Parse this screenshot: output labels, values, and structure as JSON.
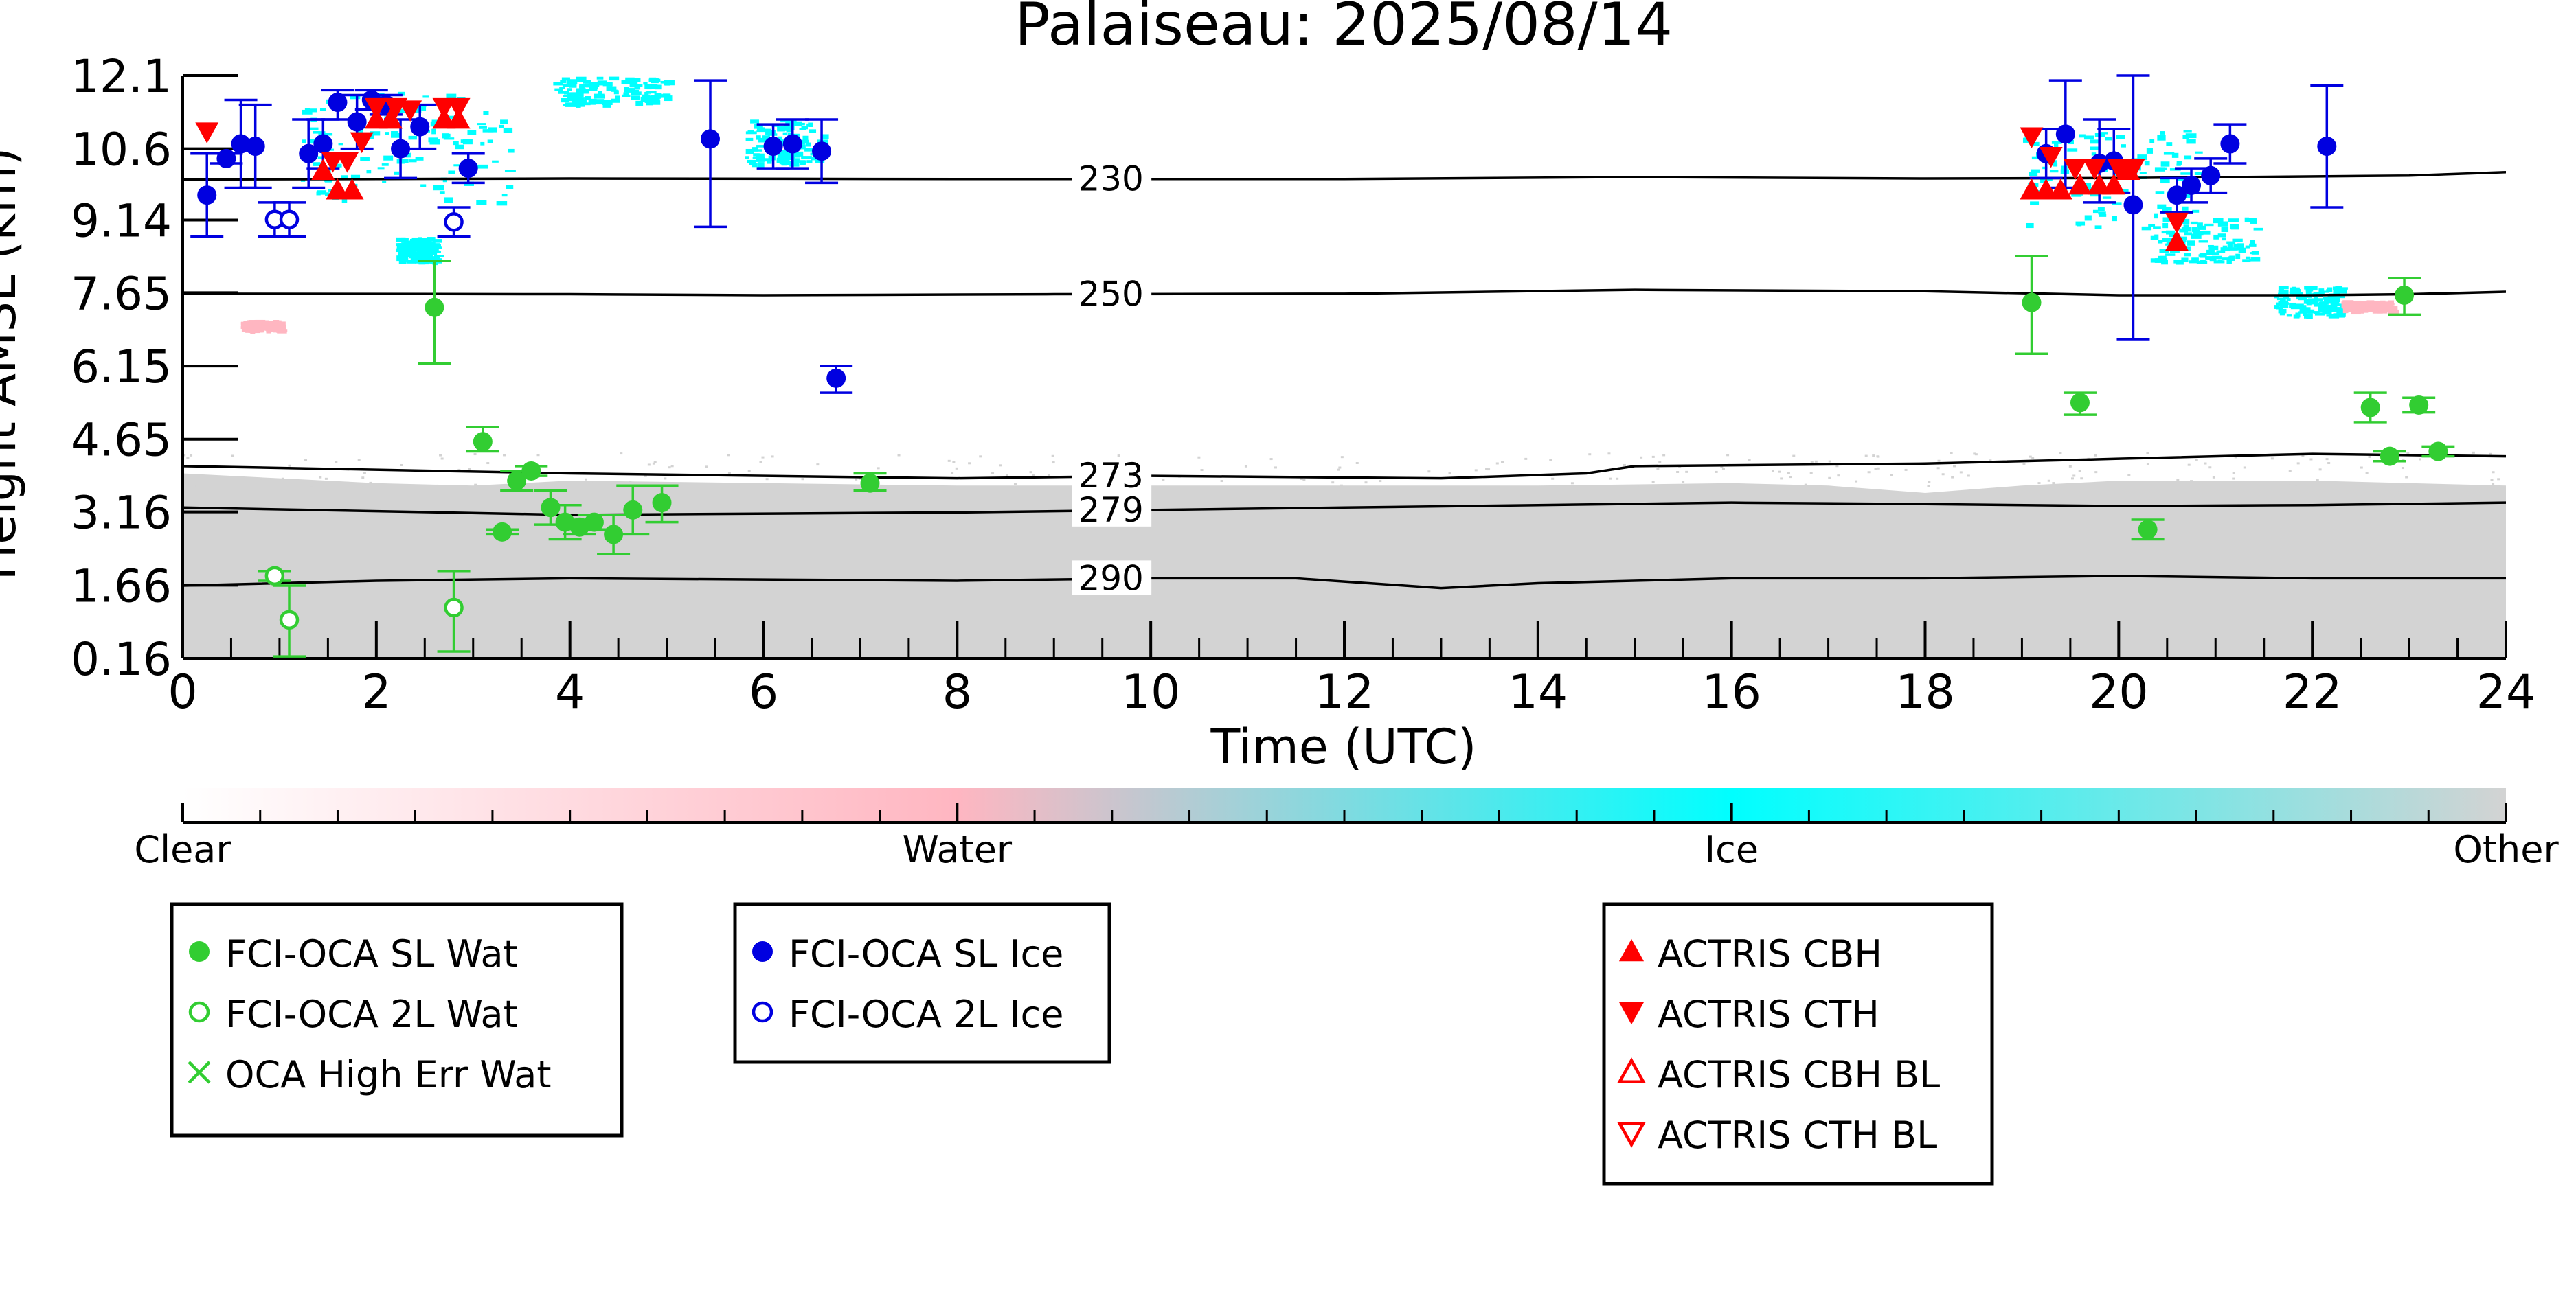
{
  "chart_data": {
    "type": "scatter",
    "title": "Palaiseau: 2025/08/14",
    "xlabel": "Time (UTC)",
    "ylabel": "Height AMSL (km)",
    "xlim": [
      0,
      24
    ],
    "ylim": [
      0.16,
      12.1
    ],
    "x_ticks": [
      0,
      2,
      4,
      6,
      8,
      10,
      12,
      14,
      16,
      18,
      20,
      22,
      24
    ],
    "y_ticks": [
      0.16,
      1.66,
      3.16,
      4.65,
      6.15,
      7.65,
      9.14,
      10.6,
      12.1
    ],
    "y_tick_labels": [
      "0.16",
      "1.66",
      "3.16",
      "4.65",
      "6.15",
      "7.65",
      "9.14",
      "10.6",
      "12.1"
    ],
    "grid": false,
    "background_classification": {
      "colorbar_labels": [
        "Clear",
        "Water",
        "Ice",
        "Other"
      ],
      "colors": {
        "clear": "#ffffff",
        "water": "#ffb6c1",
        "ice": "#00ffff",
        "other": "#d3d3d3"
      },
      "other_layer_top_km": [
        [
          0,
          3.95
        ],
        [
          1,
          3.85
        ],
        [
          2,
          3.75
        ],
        [
          3,
          3.7
        ],
        [
          4,
          3.8
        ],
        [
          6,
          3.75
        ],
        [
          8,
          3.7
        ],
        [
          10,
          3.7
        ],
        [
          12,
          3.7
        ],
        [
          14,
          3.7
        ],
        [
          16,
          3.75
        ],
        [
          17,
          3.7
        ],
        [
          18,
          3.55
        ],
        [
          19,
          3.7
        ],
        [
          20,
          3.8
        ],
        [
          22,
          3.8
        ],
        [
          24,
          3.7
        ]
      ],
      "ice_patches": [
        {
          "x": [
            1.2,
            3.4
          ],
          "y": [
            9.5,
            11.8
          ]
        },
        {
          "x": [
            2.2,
            2.6
          ],
          "y": [
            8.3,
            8.8
          ]
        },
        {
          "x": [
            3.8,
            5.0
          ],
          "y": [
            11.5,
            12.1
          ]
        },
        {
          "x": [
            5.8,
            6.6
          ],
          "y": [
            10.3,
            11.2
          ]
        },
        {
          "x": [
            19.0,
            20.8
          ],
          "y": [
            9.0,
            11.0
          ]
        },
        {
          "x": [
            20.3,
            21.4
          ],
          "y": [
            8.3,
            9.2
          ]
        },
        {
          "x": [
            21.6,
            22.3
          ],
          "y": [
            7.2,
            7.8
          ]
        }
      ],
      "water_patches": [
        {
          "x": [
            0.6,
            1.0
          ],
          "y": [
            6.9,
            7.1
          ]
        },
        {
          "x": [
            22.3,
            22.8
          ],
          "y": [
            7.3,
            7.5
          ]
        }
      ]
    },
    "isotherms": [
      {
        "label": "230",
        "points": [
          [
            0,
            9.97
          ],
          [
            4,
            9.99
          ],
          [
            8,
            9.98
          ],
          [
            12,
            9.98
          ],
          [
            15,
            10.02
          ],
          [
            18,
            9.99
          ],
          [
            20,
            10.0
          ],
          [
            23,
            10.05
          ],
          [
            24,
            10.12
          ]
        ]
      },
      {
        "label": "250",
        "points": [
          [
            0,
            7.63
          ],
          [
            4,
            7.62
          ],
          [
            6,
            7.6
          ],
          [
            9,
            7.62
          ],
          [
            12,
            7.63
          ],
          [
            15,
            7.71
          ],
          [
            18,
            7.68
          ],
          [
            20,
            7.6
          ],
          [
            22,
            7.6
          ],
          [
            23,
            7.62
          ],
          [
            24,
            7.67
          ]
        ]
      },
      {
        "label": "273",
        "points": [
          [
            0,
            4.1
          ],
          [
            4,
            3.95
          ],
          [
            8,
            3.85
          ],
          [
            10,
            3.9
          ],
          [
            13,
            3.85
          ],
          [
            14.5,
            3.95
          ],
          [
            15,
            4.1
          ],
          [
            18,
            4.15
          ],
          [
            20,
            4.25
          ],
          [
            22,
            4.35
          ],
          [
            24,
            4.3
          ]
        ]
      },
      {
        "label": "279",
        "points": [
          [
            0,
            3.25
          ],
          [
            4,
            3.1
          ],
          [
            8,
            3.15
          ],
          [
            10,
            3.2
          ],
          [
            12,
            3.25
          ],
          [
            14,
            3.3
          ],
          [
            16,
            3.35
          ],
          [
            18,
            3.32
          ],
          [
            20,
            3.28
          ],
          [
            22,
            3.3
          ],
          [
            24,
            3.35
          ]
        ]
      },
      {
        "label": "290",
        "points": [
          [
            0,
            1.65
          ],
          [
            2,
            1.75
          ],
          [
            4,
            1.8
          ],
          [
            8,
            1.75
          ],
          [
            10,
            1.8
          ],
          [
            11.5,
            1.8
          ],
          [
            13,
            1.6
          ],
          [
            14,
            1.7
          ],
          [
            16,
            1.8
          ],
          [
            18,
            1.8
          ],
          [
            20,
            1.85
          ],
          [
            22,
            1.8
          ],
          [
            24,
            1.8
          ]
        ]
      }
    ],
    "series": [
      {
        "name": "FCI-OCA SL Wat",
        "color": "#32cd32",
        "marker": "circle-filled",
        "points": [
          {
            "x": 2.6,
            "y": 7.35,
            "err": [
              6.2,
              8.3
            ]
          },
          {
            "x": 3.1,
            "y": 4.6,
            "err": [
              4.4,
              4.9
            ]
          },
          {
            "x": 3.3,
            "y": 2.75,
            "err": [
              2.7,
              2.8
            ]
          },
          {
            "x": 3.45,
            "y": 3.8,
            "err": [
              3.6,
              4.0
            ]
          },
          {
            "x": 3.6,
            "y": 4.0,
            "err": [
              3.9,
              4.1
            ]
          },
          {
            "x": 3.8,
            "y": 3.25,
            "err": [
              2.9,
              3.6
            ]
          },
          {
            "x": 3.95,
            "y": 2.95,
            "err": [
              2.6,
              3.3
            ]
          },
          {
            "x": 4.1,
            "y": 2.85,
            "err": [
              2.7,
              3.0
            ]
          },
          {
            "x": 4.25,
            "y": 2.95,
            "err": [
              2.8,
              3.1
            ]
          },
          {
            "x": 4.45,
            "y": 2.7,
            "err": [
              2.3,
              3.1
            ]
          },
          {
            "x": 4.65,
            "y": 3.2,
            "err": [
              2.7,
              3.7
            ]
          },
          {
            "x": 4.95,
            "y": 3.35,
            "err": [
              2.95,
              3.7
            ]
          },
          {
            "x": 7.1,
            "y": 3.75,
            "err": [
              3.6,
              3.95
            ]
          },
          {
            "x": 19.1,
            "y": 7.45,
            "err": [
              6.4,
              8.4
            ]
          },
          {
            "x": 19.6,
            "y": 5.4,
            "err": [
              5.15,
              5.6
            ]
          },
          {
            "x": 20.3,
            "y": 2.8,
            "err": [
              2.6,
              3.0
            ]
          },
          {
            "x": 22.6,
            "y": 5.3,
            "err": [
              5.0,
              5.6
            ]
          },
          {
            "x": 22.8,
            "y": 4.3,
            "err": [
              4.2,
              4.4
            ]
          },
          {
            "x": 22.95,
            "y": 7.6,
            "err": [
              7.2,
              7.95
            ]
          },
          {
            "x": 23.1,
            "y": 5.35,
            "err": [
              5.2,
              5.5
            ]
          },
          {
            "x": 23.3,
            "y": 4.4,
            "err": [
              4.3,
              4.5
            ]
          }
        ]
      },
      {
        "name": "FCI-OCA 2L Wat",
        "color": "#32cd32",
        "marker": "circle-open",
        "points": [
          {
            "x": 0.95,
            "y": 1.85,
            "err": [
              1.75,
              1.95
            ]
          },
          {
            "x": 1.1,
            "y": 0.95,
            "err": [
              0.2,
              1.65
            ]
          },
          {
            "x": 2.8,
            "y": 1.2,
            "err": [
              0.3,
              1.95
            ]
          }
        ]
      },
      {
        "name": "OCA High Err Wat",
        "color": "#32cd32",
        "marker": "x",
        "points": []
      },
      {
        "name": "FCI-OCA SL Ice",
        "color": "#0000e0",
        "marker": "circle-filled",
        "points": [
          {
            "x": 0.25,
            "y": 9.65,
            "err": [
              8.8,
              10.5
            ]
          },
          {
            "x": 0.45,
            "y": 10.4,
            "err": [
              10.3,
              10.5
            ]
          },
          {
            "x": 0.6,
            "y": 10.7,
            "err": [
              9.8,
              11.6
            ]
          },
          {
            "x": 0.75,
            "y": 10.65,
            "err": [
              9.8,
              11.5
            ]
          },
          {
            "x": 1.3,
            "y": 10.5,
            "err": [
              9.8,
              11.2
            ]
          },
          {
            "x": 1.45,
            "y": 10.7,
            "err": [
              10.2,
              11.2
            ]
          },
          {
            "x": 1.6,
            "y": 11.55,
            "err": [
              11.2,
              11.8
            ]
          },
          {
            "x": 1.8,
            "y": 11.15,
            "err": [
              10.6,
              11.7
            ]
          },
          {
            "x": 1.95,
            "y": 11.6,
            "err": [
              11.4,
              11.8
            ]
          },
          {
            "x": 2.1,
            "y": 11.5,
            "err": [
              11.3,
              11.7
            ]
          },
          {
            "x": 2.25,
            "y": 10.6,
            "err": [
              10.0,
              11.2
            ]
          },
          {
            "x": 2.45,
            "y": 11.05,
            "err": [
              10.6,
              11.5
            ]
          },
          {
            "x": 2.95,
            "y": 10.2,
            "err": [
              9.9,
              10.5
            ]
          },
          {
            "x": 5.45,
            "y": 10.8,
            "err": [
              9.0,
              12.0
            ]
          },
          {
            "x": 6.1,
            "y": 10.65,
            "err": [
              10.2,
              11.1
            ]
          },
          {
            "x": 6.3,
            "y": 10.7,
            "err": [
              10.2,
              11.2
            ]
          },
          {
            "x": 6.6,
            "y": 10.55,
            "err": [
              9.9,
              11.2
            ]
          },
          {
            "x": 6.75,
            "y": 5.9,
            "err": [
              5.6,
              6.15
            ]
          },
          {
            "x": 19.25,
            "y": 10.5,
            "err": [
              10.0,
              11.0
            ]
          },
          {
            "x": 19.45,
            "y": 10.9,
            "err": [
              9.8,
              12.0
            ]
          },
          {
            "x": 19.8,
            "y": 10.3,
            "err": [
              9.5,
              11.2
            ]
          },
          {
            "x": 19.95,
            "y": 10.35,
            "err": [
              9.7,
              11.0
            ]
          },
          {
            "x": 20.15,
            "y": 9.45,
            "err": [
              6.7,
              12.1
            ]
          },
          {
            "x": 20.6,
            "y": 9.65,
            "err": [
              9.3,
              10.0
            ]
          },
          {
            "x": 20.75,
            "y": 9.85,
            "err": [
              9.5,
              10.2
            ]
          },
          {
            "x": 20.95,
            "y": 10.05,
            "err": [
              9.7,
              10.4
            ]
          },
          {
            "x": 21.15,
            "y": 10.7,
            "err": [
              10.3,
              11.1
            ]
          },
          {
            "x": 22.15,
            "y": 10.65,
            "err": [
              9.4,
              11.9
            ]
          }
        ]
      },
      {
        "name": "FCI-OCA 2L Ice",
        "color": "#0000e0",
        "marker": "circle-open",
        "points": [
          {
            "x": 0.95,
            "y": 9.15,
            "err": [
              8.8,
              9.5
            ]
          },
          {
            "x": 1.1,
            "y": 9.15,
            "err": [
              8.8,
              9.5
            ]
          },
          {
            "x": 2.8,
            "y": 9.1,
            "err": [
              8.8,
              9.4
            ]
          }
        ]
      },
      {
        "name": "ACTRIS CBH",
        "color": "#ff0000",
        "marker": "triangle-up-filled",
        "points": [
          {
            "x": 1.45,
            "y": 10.15
          },
          {
            "x": 1.6,
            "y": 9.75
          },
          {
            "x": 1.75,
            "y": 9.75
          },
          {
            "x": 2.0,
            "y": 11.2
          },
          {
            "x": 2.15,
            "y": 11.2
          },
          {
            "x": 2.7,
            "y": 11.2
          },
          {
            "x": 2.85,
            "y": 11.2
          },
          {
            "x": 19.1,
            "y": 9.75
          },
          {
            "x": 19.25,
            "y": 9.75
          },
          {
            "x": 19.4,
            "y": 9.75
          },
          {
            "x": 19.6,
            "y": 9.85
          },
          {
            "x": 19.8,
            "y": 9.85
          },
          {
            "x": 19.95,
            "y": 9.85
          },
          {
            "x": 20.1,
            "y": 10.15
          },
          {
            "x": 20.6,
            "y": 8.7
          }
        ]
      },
      {
        "name": "ACTRIS CTH",
        "color": "#ff0000",
        "marker": "triangle-down-filled",
        "points": [
          {
            "x": 0.25,
            "y": 10.95
          },
          {
            "x": 1.55,
            "y": 10.35
          },
          {
            "x": 1.7,
            "y": 10.35
          },
          {
            "x": 1.85,
            "y": 10.75
          },
          {
            "x": 2.0,
            "y": 11.45
          },
          {
            "x": 2.2,
            "y": 11.45
          },
          {
            "x": 2.35,
            "y": 11.4
          },
          {
            "x": 2.7,
            "y": 11.45
          },
          {
            "x": 2.85,
            "y": 11.45
          },
          {
            "x": 19.1,
            "y": 10.85
          },
          {
            "x": 19.3,
            "y": 10.45
          },
          {
            "x": 19.55,
            "y": 10.2
          },
          {
            "x": 19.75,
            "y": 10.2
          },
          {
            "x": 20.0,
            "y": 10.2
          },
          {
            "x": 20.15,
            "y": 10.2
          },
          {
            "x": 20.6,
            "y": 9.1
          }
        ]
      },
      {
        "name": "ACTRIS CBH BL",
        "color": "#ff0000",
        "marker": "triangle-up-open",
        "points": []
      },
      {
        "name": "ACTRIS CTH BL",
        "color": "#ff0000",
        "marker": "triangle-down-open",
        "points": []
      }
    ],
    "legends": [
      {
        "entries": [
          "FCI-OCA SL Wat",
          "FCI-OCA 2L Wat",
          "OCA High Err Wat"
        ]
      },
      {
        "entries": [
          "FCI-OCA SL Ice",
          "FCI-OCA 2L Ice"
        ]
      },
      {
        "entries": [
          "ACTRIS CBH",
          "ACTRIS CTH",
          "ACTRIS CBH BL",
          "ACTRIS CTH BL"
        ]
      }
    ]
  }
}
